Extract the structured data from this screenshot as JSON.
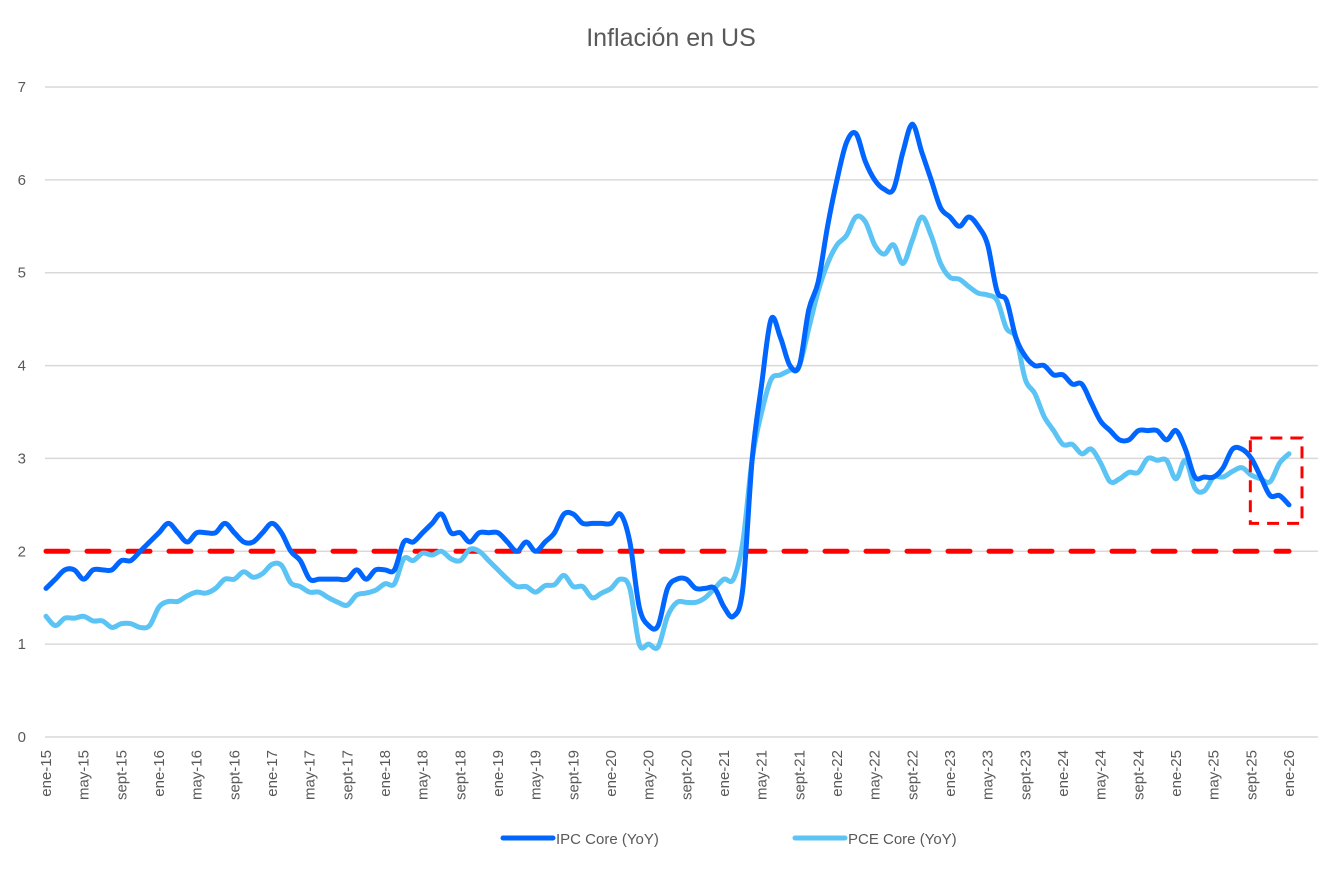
{
  "chart_data": {
    "type": "line",
    "title": "Inflación en US",
    "xlabel": "",
    "ylabel": "",
    "ylim": [
      0,
      7
    ],
    "yticks": [
      "0",
      "1",
      "2",
      "3",
      "4",
      "5",
      "6",
      "7"
    ],
    "grid": true,
    "legend_placement": "bottom",
    "xtick_labels": [
      "ene-15",
      "may-15",
      "sept-15",
      "ene-16",
      "may-16",
      "sept-16",
      "ene-17",
      "may-17",
      "sept-17",
      "ene-18",
      "may-18",
      "sept-18",
      "ene-19",
      "may-19",
      "sept-19",
      "ene-20",
      "may-20",
      "sept-20",
      "ene-21",
      "may-21",
      "sept-21",
      "ene-22",
      "may-22",
      "sept-22",
      "ene-23",
      "may-23",
      "sept-23",
      "ene-24",
      "may-24",
      "sept-24",
      "ene-25",
      "may-25",
      "sept-25",
      "ene-26"
    ],
    "x": [
      "ene-15",
      "feb-15",
      "mar-15",
      "abr-15",
      "may-15",
      "jun-15",
      "jul-15",
      "ago-15",
      "sept-15",
      "oct-15",
      "nov-15",
      "dic-15",
      "ene-16",
      "feb-16",
      "mar-16",
      "abr-16",
      "may-16",
      "jun-16",
      "jul-16",
      "ago-16",
      "sept-16",
      "oct-16",
      "nov-16",
      "dic-16",
      "ene-17",
      "feb-17",
      "mar-17",
      "abr-17",
      "may-17",
      "jun-17",
      "jul-17",
      "ago-17",
      "sept-17",
      "oct-17",
      "nov-17",
      "dic-17",
      "ene-18",
      "feb-18",
      "mar-18",
      "abr-18",
      "may-18",
      "jun-18",
      "jul-18",
      "ago-18",
      "sept-18",
      "oct-18",
      "nov-18",
      "dic-18",
      "ene-19",
      "feb-19",
      "mar-19",
      "abr-19",
      "may-19",
      "jun-19",
      "jul-19",
      "ago-19",
      "sept-19",
      "oct-19",
      "nov-19",
      "dic-19",
      "ene-20",
      "feb-20",
      "mar-20",
      "abr-20",
      "may-20",
      "jun-20",
      "jul-20",
      "ago-20",
      "sept-20",
      "oct-20",
      "nov-20",
      "dic-20",
      "ene-21",
      "feb-21",
      "mar-21",
      "abr-21",
      "may-21",
      "jun-21",
      "jul-21",
      "ago-21",
      "sept-21",
      "oct-21",
      "nov-21",
      "dic-21",
      "ene-22",
      "feb-22",
      "mar-22",
      "abr-22",
      "may-22",
      "jun-22",
      "jul-22",
      "ago-22",
      "sept-22",
      "oct-22",
      "nov-22",
      "dic-22",
      "ene-23",
      "feb-23",
      "mar-23",
      "abr-23",
      "may-23",
      "jun-23",
      "jul-23",
      "ago-23",
      "sept-23",
      "oct-23",
      "nov-23",
      "dic-23",
      "ene-24",
      "feb-24",
      "mar-24",
      "abr-24",
      "may-24",
      "jun-24",
      "jul-24",
      "ago-24",
      "sept-24",
      "oct-24",
      "nov-24",
      "dic-24",
      "ene-25",
      "feb-25",
      "mar-25",
      "abr-25",
      "may-25",
      "jun-25",
      "jul-25",
      "ago-25",
      "sept-25",
      "oct-25",
      "nov-25",
      "dic-25",
      "ene-26"
    ],
    "series": [
      {
        "name": "IPC Core (YoY)",
        "color": "#0066FF",
        "values": [
          1.6,
          1.7,
          1.8,
          1.8,
          1.7,
          1.8,
          1.8,
          1.8,
          1.9,
          1.9,
          2.0,
          2.1,
          2.2,
          2.3,
          2.2,
          2.1,
          2.2,
          2.2,
          2.2,
          2.3,
          2.2,
          2.1,
          2.1,
          2.2,
          2.3,
          2.2,
          2.0,
          1.9,
          1.7,
          1.7,
          1.7,
          1.7,
          1.7,
          1.8,
          1.7,
          1.8,
          1.8,
          1.8,
          2.1,
          2.1,
          2.2,
          2.3,
          2.4,
          2.2,
          2.2,
          2.1,
          2.2,
          2.2,
          2.2,
          2.1,
          2.0,
          2.1,
          2.0,
          2.1,
          2.2,
          2.4,
          2.4,
          2.3,
          2.3,
          2.3,
          2.3,
          2.4,
          2.1,
          1.4,
          1.2,
          1.2,
          1.6,
          1.7,
          1.7,
          1.6,
          1.6,
          1.6,
          1.4,
          1.3,
          1.6,
          3.0,
          3.8,
          4.5,
          4.3,
          4.0,
          4.0,
          4.6,
          4.9,
          5.5,
          6.0,
          6.4,
          6.5,
          6.2,
          6.0,
          5.9,
          5.9,
          6.3,
          6.6,
          6.3,
          6.0,
          5.7,
          5.6,
          5.5,
          5.6,
          5.5,
          5.3,
          4.8,
          4.7,
          4.3,
          4.1,
          4.0,
          4.0,
          3.9,
          3.9,
          3.8,
          3.8,
          3.6,
          3.4,
          3.3,
          3.2,
          3.2,
          3.3,
          3.3,
          3.3,
          3.2,
          3.3,
          3.1,
          2.8,
          2.8,
          2.8,
          2.9,
          3.1,
          3.1,
          3.0,
          2.8,
          2.6,
          2.6,
          2.5
        ]
      },
      {
        "name": "PCE Core (YoY)",
        "color": "#5BC4F5",
        "values": [
          1.3,
          1.2,
          1.28,
          1.28,
          1.3,
          1.25,
          1.25,
          1.18,
          1.22,
          1.22,
          1.18,
          1.2,
          1.4,
          1.46,
          1.46,
          1.52,
          1.56,
          1.55,
          1.6,
          1.7,
          1.7,
          1.78,
          1.72,
          1.76,
          1.86,
          1.85,
          1.66,
          1.62,
          1.56,
          1.56,
          1.5,
          1.45,
          1.42,
          1.53,
          1.55,
          1.58,
          1.65,
          1.65,
          1.92,
          1.9,
          1.98,
          1.96,
          2.0,
          1.92,
          1.9,
          2.02,
          2.0,
          1.9,
          1.8,
          1.7,
          1.62,
          1.62,
          1.56,
          1.63,
          1.64,
          1.74,
          1.62,
          1.62,
          1.5,
          1.55,
          1.6,
          1.7,
          1.6,
          1.0,
          1.0,
          0.97,
          1.3,
          1.45,
          1.45,
          1.45,
          1.5,
          1.6,
          1.7,
          1.7,
          2.1,
          3.0,
          3.5,
          3.85,
          3.9,
          3.95,
          4.0,
          4.4,
          4.8,
          5.1,
          5.3,
          5.4,
          5.6,
          5.55,
          5.3,
          5.2,
          5.3,
          5.1,
          5.35,
          5.6,
          5.4,
          5.1,
          4.95,
          4.93,
          4.85,
          4.78,
          4.76,
          4.7,
          4.4,
          4.3,
          3.85,
          3.7,
          3.45,
          3.3,
          3.15,
          3.15,
          3.05,
          3.1,
          2.95,
          2.75,
          2.78,
          2.85,
          2.85,
          3.0,
          2.98,
          2.98,
          2.78,
          2.98,
          2.68,
          2.65,
          2.8,
          2.8,
          2.86,
          2.9,
          2.82,
          2.78,
          2.75,
          2.95,
          3.05
        ]
      },
      {
        "name": "",
        "color": "#FF0000",
        "style": "dashed",
        "constant": 2
      }
    ],
    "annotation": {
      "shape": "dashed-rectangle",
      "color": "#FF0000",
      "x_from": "sept-25",
      "x_to": "ene-26",
      "y_range": [
        2.3,
        3.22
      ]
    }
  }
}
